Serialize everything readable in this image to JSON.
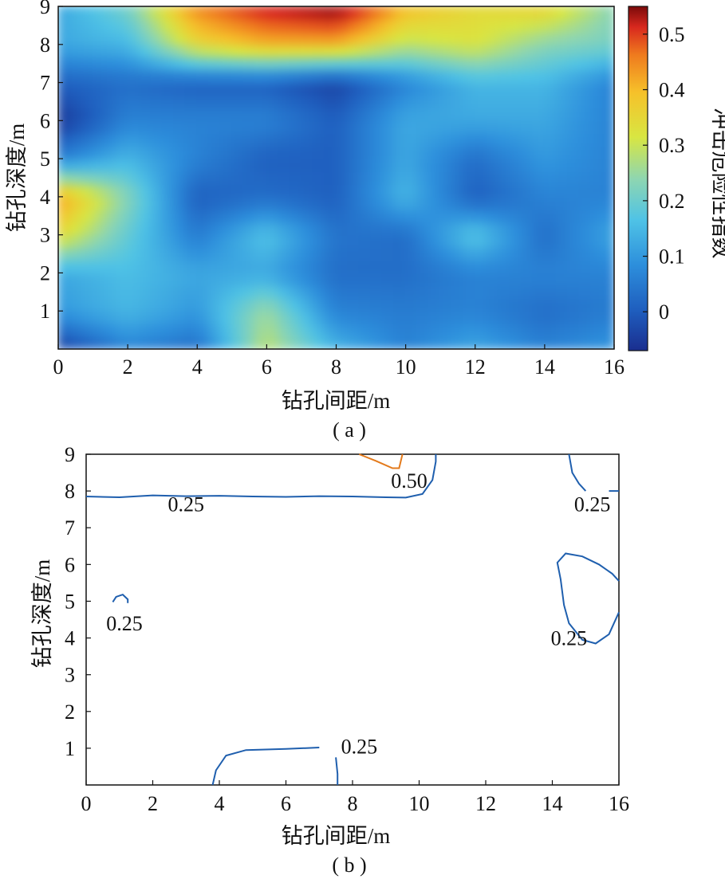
{
  "chart_data": [
    {
      "type": "heatmap",
      "caption": "( a )",
      "xlabel": "钻孔间距/m",
      "ylabel": "钻孔深度/m",
      "xlim": [
        0,
        16
      ],
      "ylim": [
        0,
        9
      ],
      "xticks": [
        "0",
        "2",
        "4",
        "6",
        "8",
        "10",
        "12",
        "14",
        "16"
      ],
      "yticks": [
        "1",
        "2",
        "3",
        "4",
        "5",
        "6",
        "7",
        "8",
        "9"
      ],
      "colorbar": {
        "label": "冲击危险性指数",
        "range": [
          -0.07,
          0.55
        ],
        "ticks": [
          "0",
          "0.1",
          "0.2",
          "0.3",
          "0.4",
          "0.5"
        ],
        "colors": [
          "#1a2e8f",
          "#1f5fbf",
          "#2d8fdc",
          "#4fc3e6",
          "#8fd6b0",
          "#d8e642",
          "#f6c12a",
          "#ef7a1e",
          "#d8281e",
          "#7a0a0a"
        ]
      },
      "grid_x": [
        0,
        2,
        4,
        6,
        8,
        10,
        12,
        14,
        16
      ],
      "grid_y": [
        0,
        1,
        2,
        3,
        4,
        5,
        6,
        7,
        8,
        9
      ],
      "z": [
        [
          -0.05,
          0.08,
          0.1,
          0.3,
          0.38,
          0.05,
          -0.06,
          0.0,
          0.1,
          0.1
        ],
        [
          0.05,
          0.12,
          0.13,
          0.16,
          0.2,
          0.12,
          0.05,
          0.02,
          0.12,
          0.18
        ],
        [
          0.02,
          0.08,
          0.1,
          0.04,
          0.0,
          0.05,
          0.05,
          0.0,
          0.3,
          0.4
        ],
        [
          0.25,
          0.22,
          0.1,
          0.14,
          0.02,
          0.0,
          0.05,
          0.0,
          0.35,
          0.5
        ],
        [
          0.12,
          0.05,
          0.02,
          0.03,
          0.0,
          0.0,
          0.0,
          -0.04,
          0.35,
          0.55
        ],
        [
          0.05,
          0.04,
          0.02,
          0.02,
          0.12,
          0.1,
          0.1,
          0.05,
          0.25,
          0.35
        ],
        [
          0.1,
          0.05,
          0.05,
          0.15,
          0.0,
          0.02,
          0.1,
          0.12,
          0.28,
          0.3
        ],
        [
          0.05,
          0.02,
          0.05,
          0.02,
          0.05,
          0.08,
          0.1,
          0.12,
          0.2,
          0.32
        ],
        [
          0.08,
          0.04,
          0.05,
          0.1,
          0.05,
          0.05,
          0.05,
          0.05,
          0.18,
          0.2
        ]
      ]
    },
    {
      "type": "contour",
      "caption": "( b )",
      "xlabel": "钻孔间距/m",
      "ylabel": "钻孔深度/m",
      "xlim": [
        0,
        16
      ],
      "ylim": [
        0,
        9
      ],
      "xticks": [
        "0",
        "2",
        "4",
        "6",
        "8",
        "10",
        "12",
        "14",
        "16"
      ],
      "yticks": [
        "1",
        "2",
        "3",
        "4",
        "5",
        "6",
        "7",
        "8",
        "9"
      ],
      "contours": [
        {
          "level": "0.25",
          "color": "#1f5fae",
          "label_pos": [
            3.0,
            7.65
          ],
          "points": [
            [
              0,
              7.85
            ],
            [
              1,
              7.83
            ],
            [
              2,
              7.88
            ],
            [
              3,
              7.86
            ],
            [
              4,
              7.87
            ],
            [
              5,
              7.85
            ],
            [
              6,
              7.84
            ],
            [
              7,
              7.86
            ],
            [
              8,
              7.85
            ],
            [
              9,
              7.83
            ],
            [
              9.6,
              7.82
            ],
            [
              10.1,
              7.92
            ],
            [
              10.4,
              8.3
            ],
            [
              10.5,
              8.8
            ],
            [
              10.5,
              9
            ]
          ]
        },
        {
          "level": "0.50",
          "color": "#e37a1c",
          "label_pos": [
            9.7,
            8.28
          ],
          "points": [
            [
              8.2,
              9
            ],
            [
              8.7,
              8.82
            ],
            [
              9.2,
              8.62
            ],
            [
              9.4,
              8.62
            ],
            [
              9.5,
              9
            ]
          ]
        },
        {
          "level": "0.25",
          "color": "#1f5fae",
          "label_pos": [
            1.15,
            4.4
          ],
          "points": [
            [
              0.8,
              4.98
            ],
            [
              0.9,
              5.12
            ],
            [
              1.1,
              5.18
            ],
            [
              1.25,
              5.05
            ],
            [
              1.25,
              4.95
            ]
          ]
        },
        {
          "level": "0.25",
          "color": "#1f5fae",
          "label_pos": [
            14.5,
            4.0
          ],
          "points": [
            [
              16,
              4.7
            ],
            [
              15.7,
              4.1
            ],
            [
              15.3,
              3.85
            ],
            [
              14.9,
              3.95
            ],
            [
              14.5,
              4.4
            ],
            [
              14.35,
              4.9
            ],
            [
              14.25,
              5.6
            ],
            [
              14.15,
              6.05
            ],
            [
              14.4,
              6.3
            ],
            [
              14.9,
              6.22
            ],
            [
              15.4,
              6.0
            ],
            [
              15.8,
              5.75
            ],
            [
              16,
              5.55
            ]
          ]
        },
        {
          "level": "0.25",
          "color": "#1f5fae",
          "label_pos": [
            15.2,
            7.65
          ],
          "points": [
            [
              14.5,
              9
            ],
            [
              14.6,
              8.5
            ],
            [
              14.8,
              8.2
            ],
            [
              15.0,
              8.0
            ]
          ]
        },
        {
          "level": "0.25",
          "color": "#1f5fae",
          "label_pos": null,
          "points": [
            [
              15.7,
              8.0
            ],
            [
              16,
              8.0
            ]
          ]
        },
        {
          "level": "0.25",
          "color": "#1f5fae",
          "label_pos": [
            8.2,
            1.05
          ],
          "points": [
            [
              3.8,
              0
            ],
            [
              3.9,
              0.4
            ],
            [
              4.2,
              0.8
            ],
            [
              4.8,
              0.95
            ],
            [
              6,
              0.98
            ],
            [
              7,
              1.02
            ]
          ]
        },
        {
          "level": "",
          "color": "#1f5fae",
          "label_pos": null,
          "points": [
            [
              7.5,
              0.75
            ],
            [
              7.55,
              0.3
            ],
            [
              7.55,
              0
            ]
          ]
        }
      ]
    }
  ]
}
